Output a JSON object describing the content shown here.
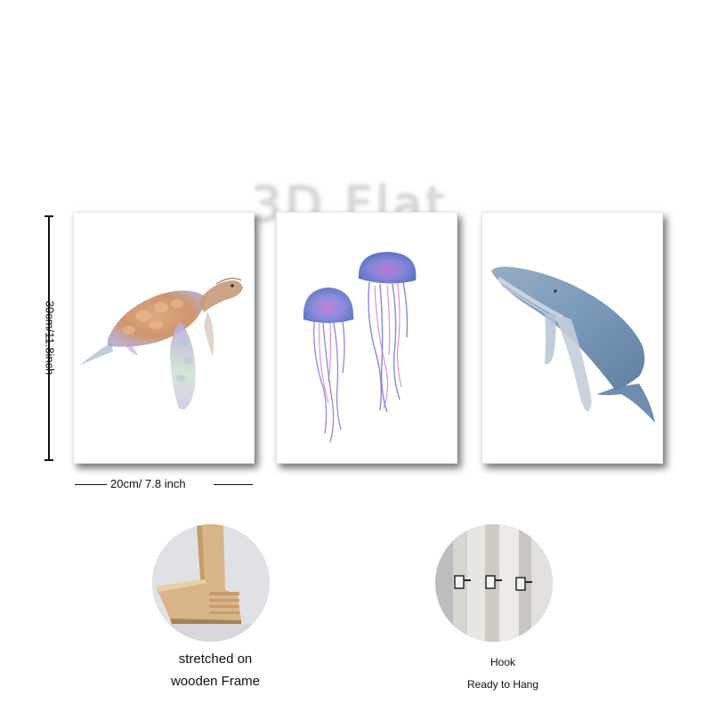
{
  "watermark": {
    "text": "3D Flat"
  },
  "dimensions": {
    "height_label": "30cm/11.8inch",
    "width_label": "20cm/ 7.8 inch"
  },
  "paintings": [
    {
      "subject": "sea turtle"
    },
    {
      "subject": "two jellyfish"
    },
    {
      "subject": "humpback whale"
    }
  ],
  "details": {
    "frame": {
      "line1": "stretched on",
      "line2": "wooden Frame"
    },
    "hook": {
      "line1": "Hook",
      "line2": "Ready to Hang"
    }
  },
  "colors": {
    "turtle_shell": "#c98a5c",
    "jelly_blue": "#5a62c4",
    "jelly_pink": "#c06ad0",
    "whale_blue": "#6b8db0",
    "wood": "#d8b489"
  }
}
